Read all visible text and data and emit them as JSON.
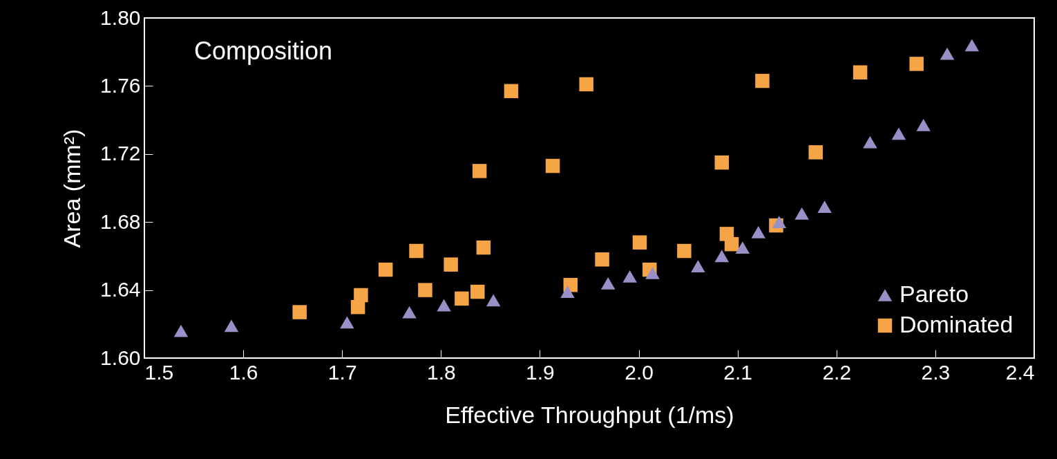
{
  "chart_data": {
    "type": "scatter",
    "xlabel": "Effective Throughput (1/ms)",
    "ylabel": "Area (mm²)",
    "annotations": [
      "Composition"
    ],
    "legend": "bottom right",
    "grid": false,
    "xlim": [
      1.5,
      2.4
    ],
    "ylim": [
      1.6,
      1.8
    ],
    "xticks": [
      1.5,
      1.6,
      1.7,
      1.8,
      1.9,
      {
        "value": 2,
        "label": "2.0"
      },
      2.1,
      2.2,
      2.3,
      2.4
    ],
    "yticks": [
      {
        "value": 1.6,
        "label": "1.60"
      },
      {
        "value": 1.64,
        "label": "1.64"
      },
      {
        "value": 1.68,
        "label": "1.68"
      },
      {
        "value": 1.72,
        "label": "1.72"
      },
      {
        "value": 1.76,
        "label": "1.76"
      },
      {
        "value": 1.8,
        "label": "1.80"
      }
    ],
    "series": [
      {
        "name": "Pareto",
        "color": "#9990c8",
        "marker": "triangle",
        "x": [
          1.537,
          1.588,
          1.705,
          1.768,
          1.803,
          1.853,
          1.928,
          1.969,
          1.991,
          2.014,
          2.06,
          2.084,
          2.105,
          2.121,
          2.142,
          2.165,
          2.188,
          2.234,
          2.263,
          2.288,
          2.312,
          2.337
        ],
        "values": [
          1.616,
          1.619,
          1.621,
          1.627,
          1.631,
          1.634,
          1.639,
          1.644,
          1.648,
          1.65,
          1.654,
          1.66,
          1.665,
          1.674,
          1.68,
          1.685,
          1.689,
          1.727,
          1.732,
          1.737,
          1.779,
          1.784
        ]
      },
      {
        "name": "Dominated",
        "color": "#f5a545",
        "marker": "square",
        "x": [
          1.657,
          1.716,
          1.719,
          1.744,
          1.775,
          1.784,
          1.81,
          1.821,
          1.837,
          1.839,
          1.843,
          1.871,
          1.913,
          1.931,
          1.947,
          1.963,
          2.001,
          2.011,
          2.046,
          2.084,
          2.089,
          2.094,
          2.125,
          2.139,
          2.179,
          2.224,
          2.281
        ],
        "values": [
          1.627,
          1.63,
          1.637,
          1.652,
          1.663,
          1.64,
          1.655,
          1.635,
          1.639,
          1.71,
          1.665,
          1.757,
          1.713,
          1.643,
          1.761,
          1.658,
          1.668,
          1.652,
          1.663,
          1.715,
          1.673,
          1.667,
          1.763,
          1.678,
          1.721,
          1.768,
          1.773
        ]
      }
    ]
  }
}
